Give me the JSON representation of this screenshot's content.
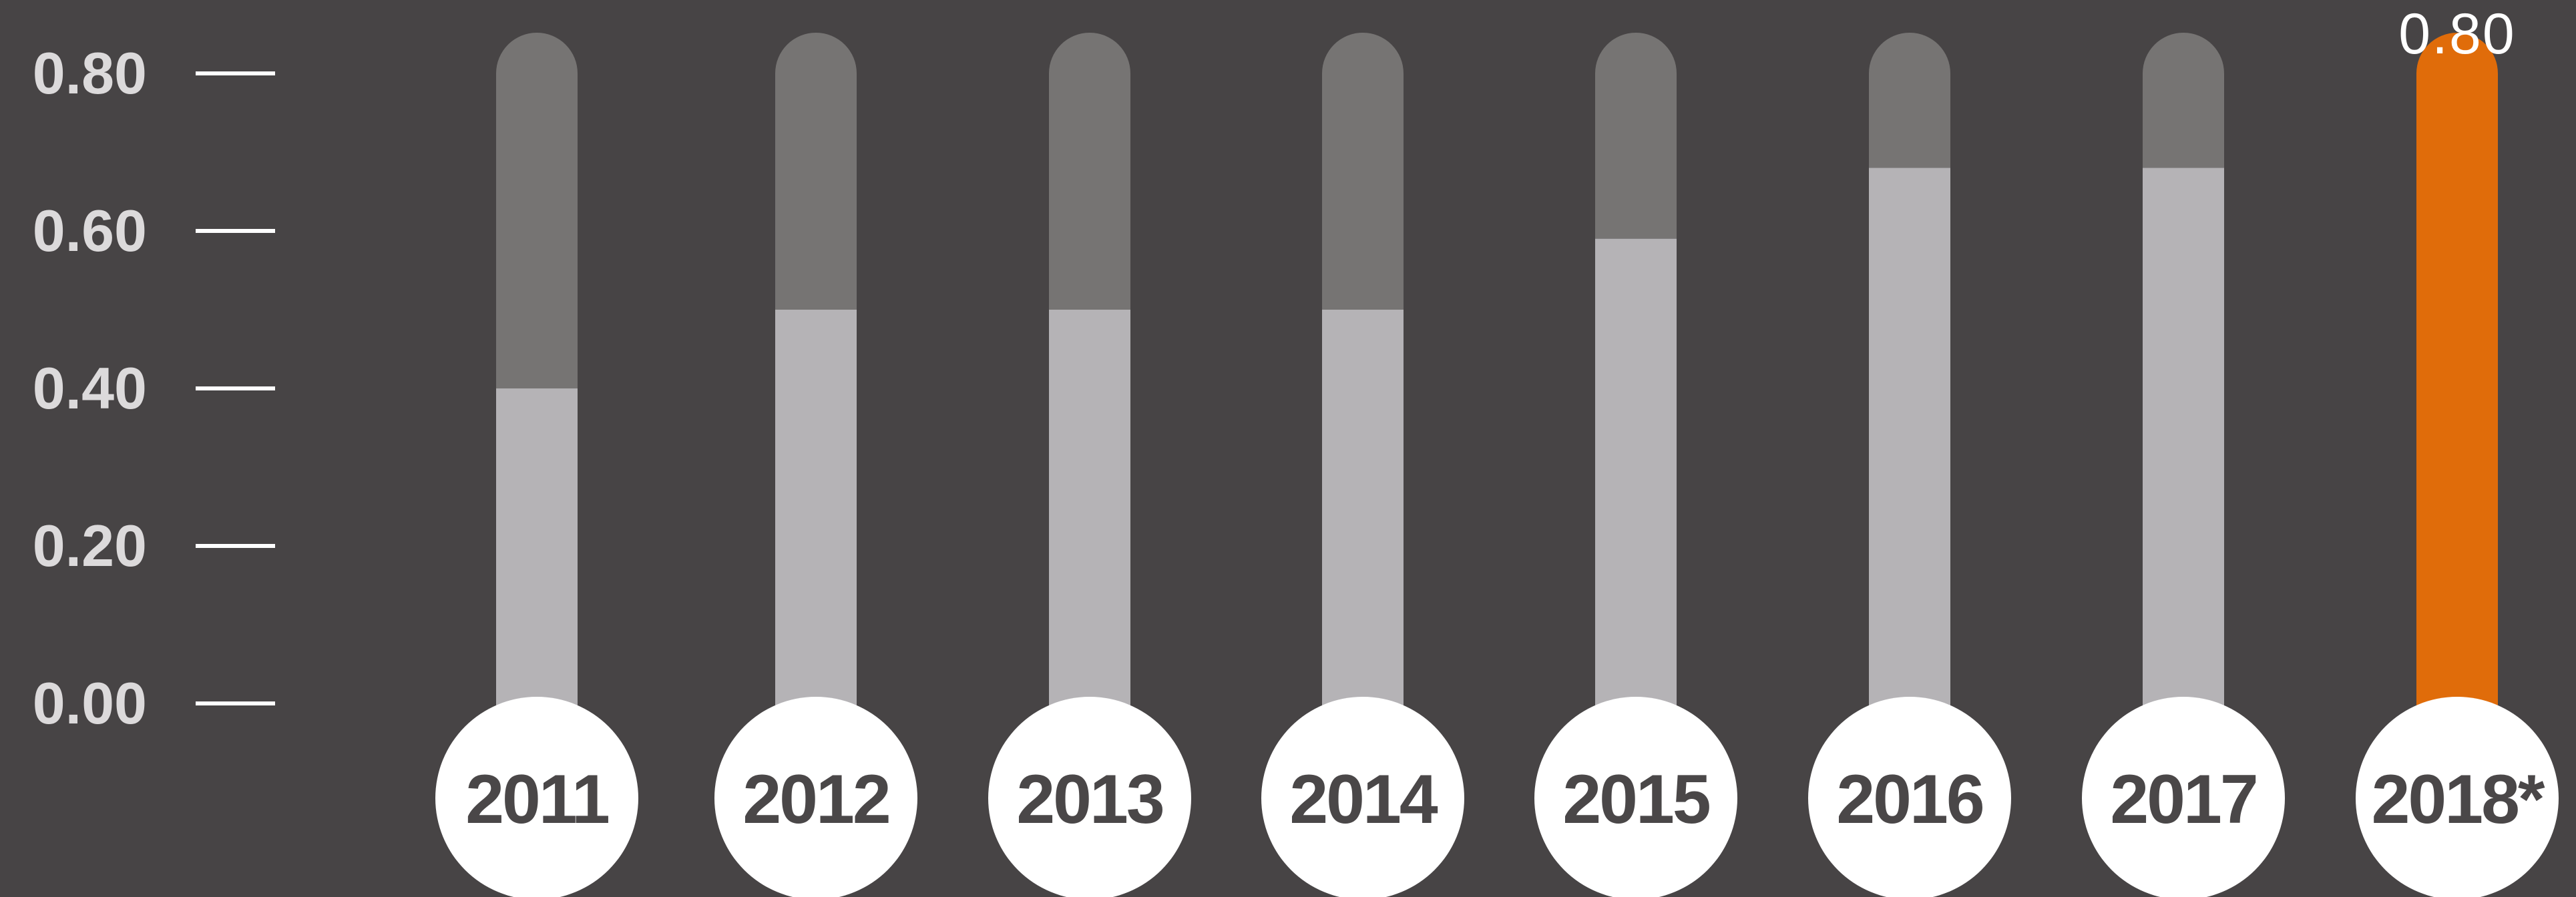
{
  "chart_data": {
    "type": "bar",
    "categories": [
      "2011",
      "2012",
      "2013",
      "2014",
      "2015",
      "2016",
      "2017",
      "2018*"
    ],
    "values": [
      0.4,
      0.5,
      0.5,
      0.5,
      0.59,
      0.68,
      0.68,
      0.8
    ],
    "capacity": 0.8,
    "highlight": {
      "index": 7,
      "label": "0.80"
    },
    "ylim": [
      0,
      0.8
    ],
    "yticks": [
      "0.00",
      "0.20",
      "0.40",
      "0.60",
      "0.80"
    ],
    "title": "",
    "xlabel": "",
    "ylabel": "",
    "grid": false,
    "colors": {
      "background": "#474445",
      "fill": "#b5b3b6",
      "track": "#767473",
      "highlight": "#e06c0a",
      "tick": "#ffffff",
      "tick_label": "#dcdadb",
      "badge": "#ffffff",
      "badge_text": "#4a4748",
      "value_label": "#ffffff"
    }
  }
}
